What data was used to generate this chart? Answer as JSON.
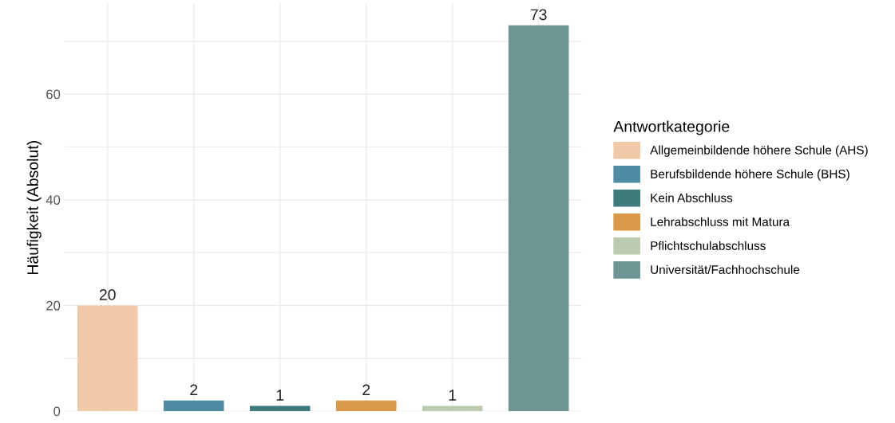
{
  "chart_data": {
    "type": "bar",
    "ylabel": "Häufigkeit (Absolut)",
    "legend_title": "Antwortkategorie",
    "categories": [
      null,
      null,
      null,
      null,
      null,
      null
    ],
    "series": [
      {
        "name": "Allgemeinbildende höhere Schule (AHS)",
        "color": "#f0c9a8",
        "values": [
          20,
          null,
          null,
          null,
          null,
          null
        ]
      },
      {
        "name": "Berufsbildende höhere Schule (BHS)",
        "color": "#4f8ba3",
        "values": [
          null,
          2,
          null,
          null,
          null,
          null
        ]
      },
      {
        "name": "Kein Abschluss",
        "color": "#3f7a7c",
        "values": [
          null,
          null,
          1,
          null,
          null,
          null
        ]
      },
      {
        "name": "Lehrabschluss mit Matura",
        "color": "#d89a4a",
        "values": [
          null,
          null,
          null,
          2,
          null,
          null
        ]
      },
      {
        "name": "Pflichtschulabschluss",
        "color": "#bccbb0",
        "values": [
          null,
          null,
          null,
          null,
          1,
          null
        ]
      },
      {
        "name": "Universität/Fachhochschule",
        "color": "#6e9494",
        "values": [
          null,
          null,
          null,
          null,
          null,
          73
        ]
      }
    ],
    "ylim": [
      0,
      77
    ],
    "yticks": [
      0,
      {
        "value": 10,
        "label": null
      },
      20,
      {
        "value": 30,
        "label": null
      },
      40,
      {
        "value": 50,
        "label": null
      },
      60,
      {
        "value": 70,
        "label": null
      }
    ],
    "grid": true,
    "legend": "right",
    "data_labels": true
  }
}
